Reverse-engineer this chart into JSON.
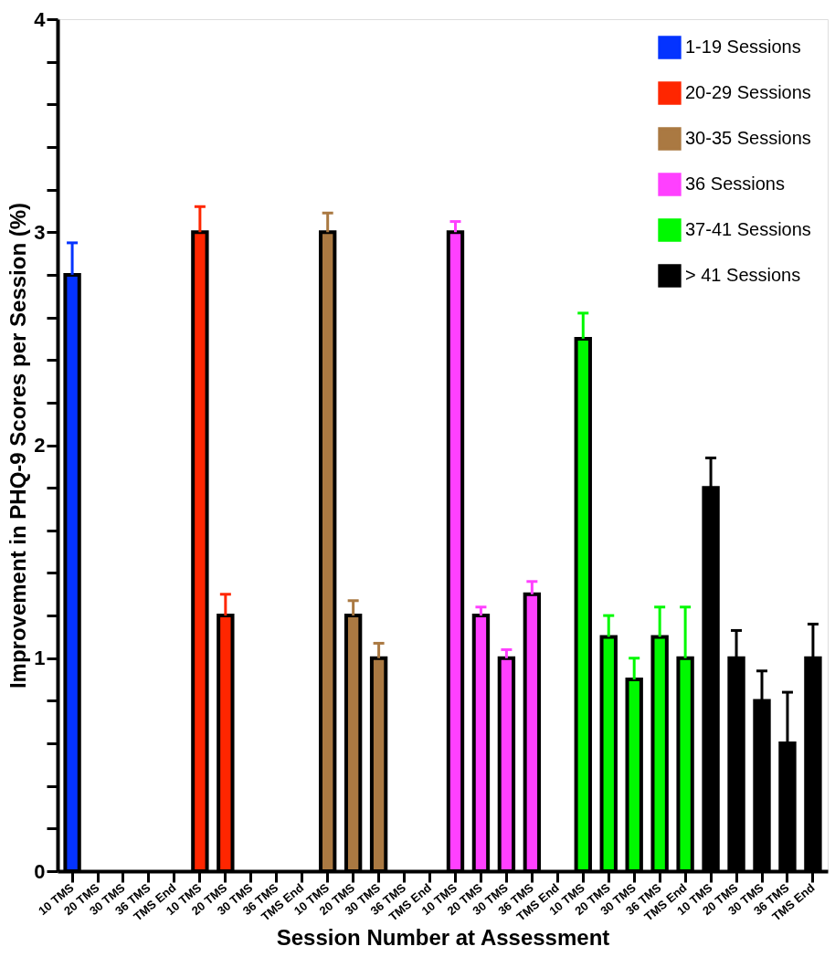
{
  "chart_data": {
    "type": "bar",
    "xlabel": "Session Number at Assessment",
    "ylabel": "Improvement in PHQ-9 Scores per Session (%)",
    "categories": [
      "10 TMS",
      "20 TMS",
      "30 TMS",
      "36 TMS",
      "TMS End",
      "10 TMS",
      "20 TMS",
      "30 TMS",
      "36 TMS",
      "TMS End",
      "10 TMS",
      "20 TMS",
      "30 TMS",
      "36 TMS",
      "TMS End",
      "10 TMS",
      "20 TMS",
      "30 TMS",
      "36 TMS",
      "TMS End",
      "10 TMS",
      "20 TMS",
      "30 TMS",
      "36 TMS",
      "TMS End",
      "10 TMS",
      "20 TMS",
      "30 TMS",
      "36 TMS",
      "TMS End"
    ],
    "ylim": [
      0,
      4
    ],
    "yticks": [
      0,
      {
        "value": 0.2,
        "label": null
      },
      {
        "value": 0.4,
        "label": null
      },
      {
        "value": 0.6,
        "label": null
      },
      {
        "value": 0.8,
        "label": null
      },
      1,
      {
        "value": 1.2,
        "label": null
      },
      {
        "value": 1.4,
        "label": null
      },
      {
        "value": 1.6,
        "label": null
      },
      {
        "value": 1.8,
        "label": null
      },
      2,
      {
        "value": 2.2,
        "label": null
      },
      {
        "value": 2.4,
        "label": null
      },
      {
        "value": 2.6,
        "label": null
      },
      {
        "value": 2.8,
        "label": null
      },
      3,
      {
        "value": 3.2,
        "label": null
      },
      {
        "value": 3.4,
        "label": null
      },
      {
        "value": 3.6,
        "label": null
      },
      {
        "value": 3.8,
        "label": null
      },
      4
    ],
    "grid": false,
    "legend": "top right",
    "series": [
      {
        "name": "1-19 Sessions",
        "color": "#0433ff",
        "values": [
          2.8,
          null,
          null,
          null,
          null,
          null,
          null,
          null,
          null,
          null,
          null,
          null,
          null,
          null,
          null,
          null,
          null,
          null,
          null,
          null,
          null,
          null,
          null,
          null,
          null,
          null,
          null,
          null,
          null,
          null
        ],
        "errors": [
          [
            2.8,
            2.95
          ],
          null,
          null,
          null,
          null,
          null,
          null,
          null,
          null,
          null,
          null,
          null,
          null,
          null,
          null,
          null,
          null,
          null,
          null,
          null,
          null,
          null,
          null,
          null,
          null,
          null,
          null,
          null,
          null,
          null
        ]
      },
      {
        "name": "20-29 Sessions",
        "color": "#ff2600",
        "values": [
          null,
          null,
          null,
          null,
          null,
          3.0,
          1.2,
          null,
          null,
          null,
          null,
          null,
          null,
          null,
          null,
          null,
          null,
          null,
          null,
          null,
          null,
          null,
          null,
          null,
          null,
          null,
          null,
          null,
          null,
          null
        ],
        "errors": [
          null,
          null,
          null,
          null,
          null,
          [
            3.0,
            3.12
          ],
          [
            1.2,
            1.3
          ],
          null,
          null,
          null,
          null,
          null,
          null,
          null,
          null,
          null,
          null,
          null,
          null,
          null,
          null,
          null,
          null,
          null,
          null,
          null,
          null,
          null,
          null,
          null
        ]
      },
      {
        "name": "30-35 Sessions",
        "color": "#aa7942",
        "values": [
          null,
          null,
          null,
          null,
          null,
          null,
          null,
          null,
          null,
          null,
          3.0,
          1.2,
          1.0,
          null,
          null,
          null,
          null,
          null,
          null,
          null,
          null,
          null,
          null,
          null,
          null,
          null,
          null,
          null,
          null,
          null
        ],
        "errors": [
          null,
          null,
          null,
          null,
          null,
          null,
          null,
          null,
          null,
          null,
          [
            3.0,
            3.09
          ],
          [
            1.2,
            1.27
          ],
          [
            1.0,
            1.07
          ],
          null,
          null,
          null,
          null,
          null,
          null,
          null,
          null,
          null,
          null,
          null,
          null,
          null,
          null,
          null,
          null,
          null
        ]
      },
      {
        "name": "36 Sessions",
        "color": "#ff40ff",
        "values": [
          null,
          null,
          null,
          null,
          null,
          null,
          null,
          null,
          null,
          null,
          null,
          null,
          null,
          null,
          null,
          3.0,
          1.2,
          1.0,
          1.3,
          null,
          null,
          null,
          null,
          null,
          null,
          null,
          null,
          null,
          null,
          null
        ],
        "errors": [
          null,
          null,
          null,
          null,
          null,
          null,
          null,
          null,
          null,
          null,
          null,
          null,
          null,
          null,
          null,
          [
            3.0,
            3.05
          ],
          [
            1.2,
            1.24
          ],
          [
            1.0,
            1.04
          ],
          [
            1.3,
            1.36
          ],
          null,
          null,
          null,
          null,
          null,
          null,
          null,
          null,
          null,
          null,
          null
        ]
      },
      {
        "name": "37-41 Sessions",
        "color": "#00f900",
        "values": [
          null,
          null,
          null,
          null,
          null,
          null,
          null,
          null,
          null,
          null,
          null,
          null,
          null,
          null,
          null,
          null,
          null,
          null,
          null,
          null,
          2.5,
          1.1,
          0.9,
          1.1,
          1.0,
          null,
          null,
          null,
          null,
          null
        ],
        "errors": [
          null,
          null,
          null,
          null,
          null,
          null,
          null,
          null,
          null,
          null,
          null,
          null,
          null,
          null,
          null,
          null,
          null,
          null,
          null,
          null,
          [
            2.5,
            2.62
          ],
          [
            1.1,
            1.2
          ],
          [
            0.9,
            1.0
          ],
          [
            1.1,
            1.24
          ],
          [
            1.0,
            1.24
          ],
          null,
          null,
          null,
          null,
          null
        ]
      },
      {
        "name": "> 41 Sessions",
        "color": "#000000",
        "values": [
          null,
          null,
          null,
          null,
          null,
          null,
          null,
          null,
          null,
          null,
          null,
          null,
          null,
          null,
          null,
          null,
          null,
          null,
          null,
          null,
          null,
          null,
          null,
          null,
          null,
          1.8,
          1.0,
          0.8,
          0.6,
          1.0
        ],
        "errors": [
          null,
          null,
          null,
          null,
          null,
          null,
          null,
          null,
          null,
          null,
          null,
          null,
          null,
          null,
          null,
          null,
          null,
          null,
          null,
          null,
          null,
          null,
          null,
          null,
          null,
          [
            1.8,
            1.94
          ],
          [
            1.0,
            1.13
          ],
          [
            0.8,
            0.94
          ],
          [
            0.6,
            0.84
          ],
          [
            1.0,
            1.16
          ]
        ]
      }
    ]
  }
}
